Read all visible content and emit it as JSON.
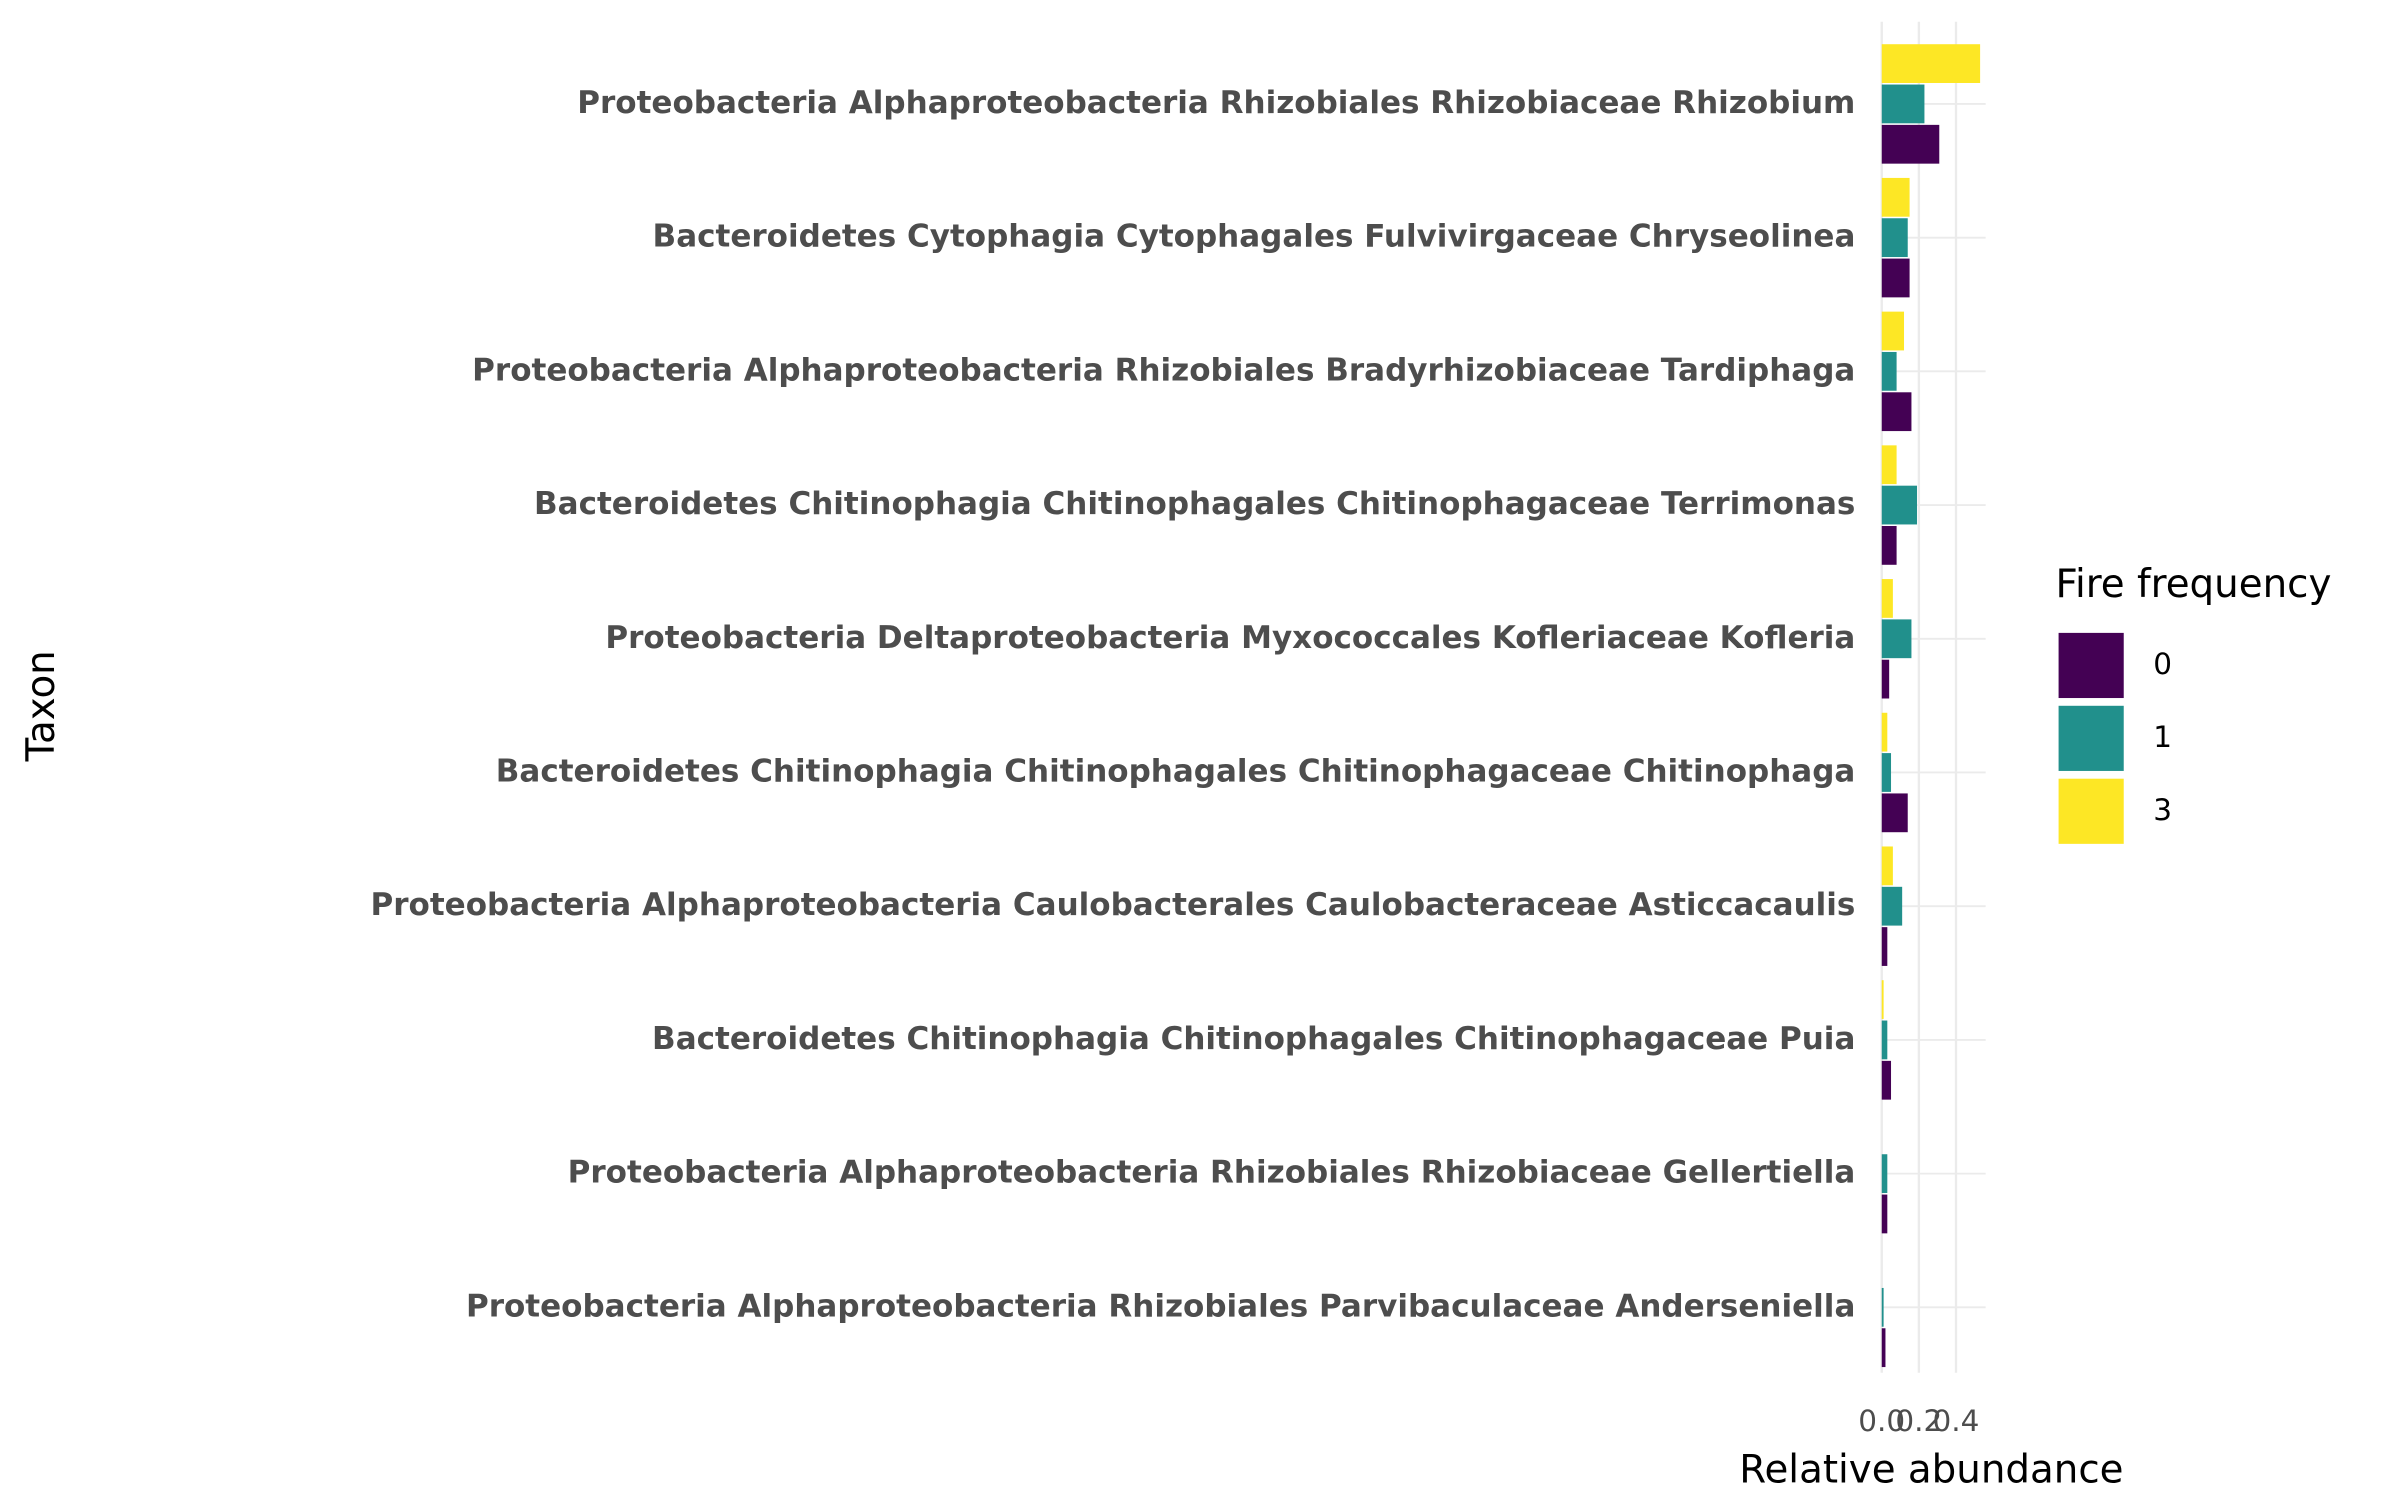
{
  "chart_data": {
    "type": "bar",
    "orientation": "horizontal",
    "x_label": "Relative abundance",
    "y_label": "Taxon",
    "legend_title": "Fire frequency",
    "categories": [
      "Proteobacteria Alphaproteobacteria Rhizobiales Rhizobiaceae Rhizobium",
      "Bacteroidetes Cytophagia Cytophagales Fulvivirgaceae Chryseolinea",
      "Proteobacteria Alphaproteobacteria Rhizobiales Bradyrhizobiaceae Tardiphaga",
      "Bacteroidetes Chitinophagia Chitinophagales Chitinophagaceae Terrimonas",
      "Proteobacteria Deltaproteobacteria Myxococcales Kofleriaceae Kofleria",
      "Bacteroidetes Chitinophagia Chitinophagales Chitinophagaceae Chitinophaga",
      "Proteobacteria Alphaproteobacteria Caulobacterales Caulobacteraceae Asticcacaulis",
      "Bacteroidetes Chitinophagia Chitinophagales Chitinophagaceae Puia",
      "Proteobacteria Alphaproteobacteria Rhizobiales Rhizobiaceae Gellertiella",
      "Proteobacteria Alphaproteobacteria Rhizobiales Parvibaculaceae Anderseniella"
    ],
    "series": [
      {
        "name": "0",
        "color": "#440154",
        "values": [
          0.31,
          0.15,
          0.16,
          0.08,
          0.04,
          0.14,
          0.03,
          0.05,
          0.03,
          0.02
        ]
      },
      {
        "name": "1",
        "color": "#21908c",
        "values": [
          0.23,
          0.14,
          0.08,
          0.19,
          0.16,
          0.05,
          0.11,
          0.03,
          0.03,
          0.01
        ]
      },
      {
        "name": "3",
        "color": "#fde725",
        "values": [
          0.53,
          0.15,
          0.12,
          0.08,
          0.06,
          0.03,
          0.06,
          0.01,
          0,
          0
        ]
      }
    ],
    "xlim": [
      0,
      0.56
    ],
    "xticks": [
      {
        "value": 0,
        "label": "0.0"
      },
      {
        "value": 0.2,
        "label": "0.2"
      },
      {
        "value": 0.4,
        "label": "0.4"
      }
    ],
    "grid": true,
    "legend_position": "right"
  }
}
